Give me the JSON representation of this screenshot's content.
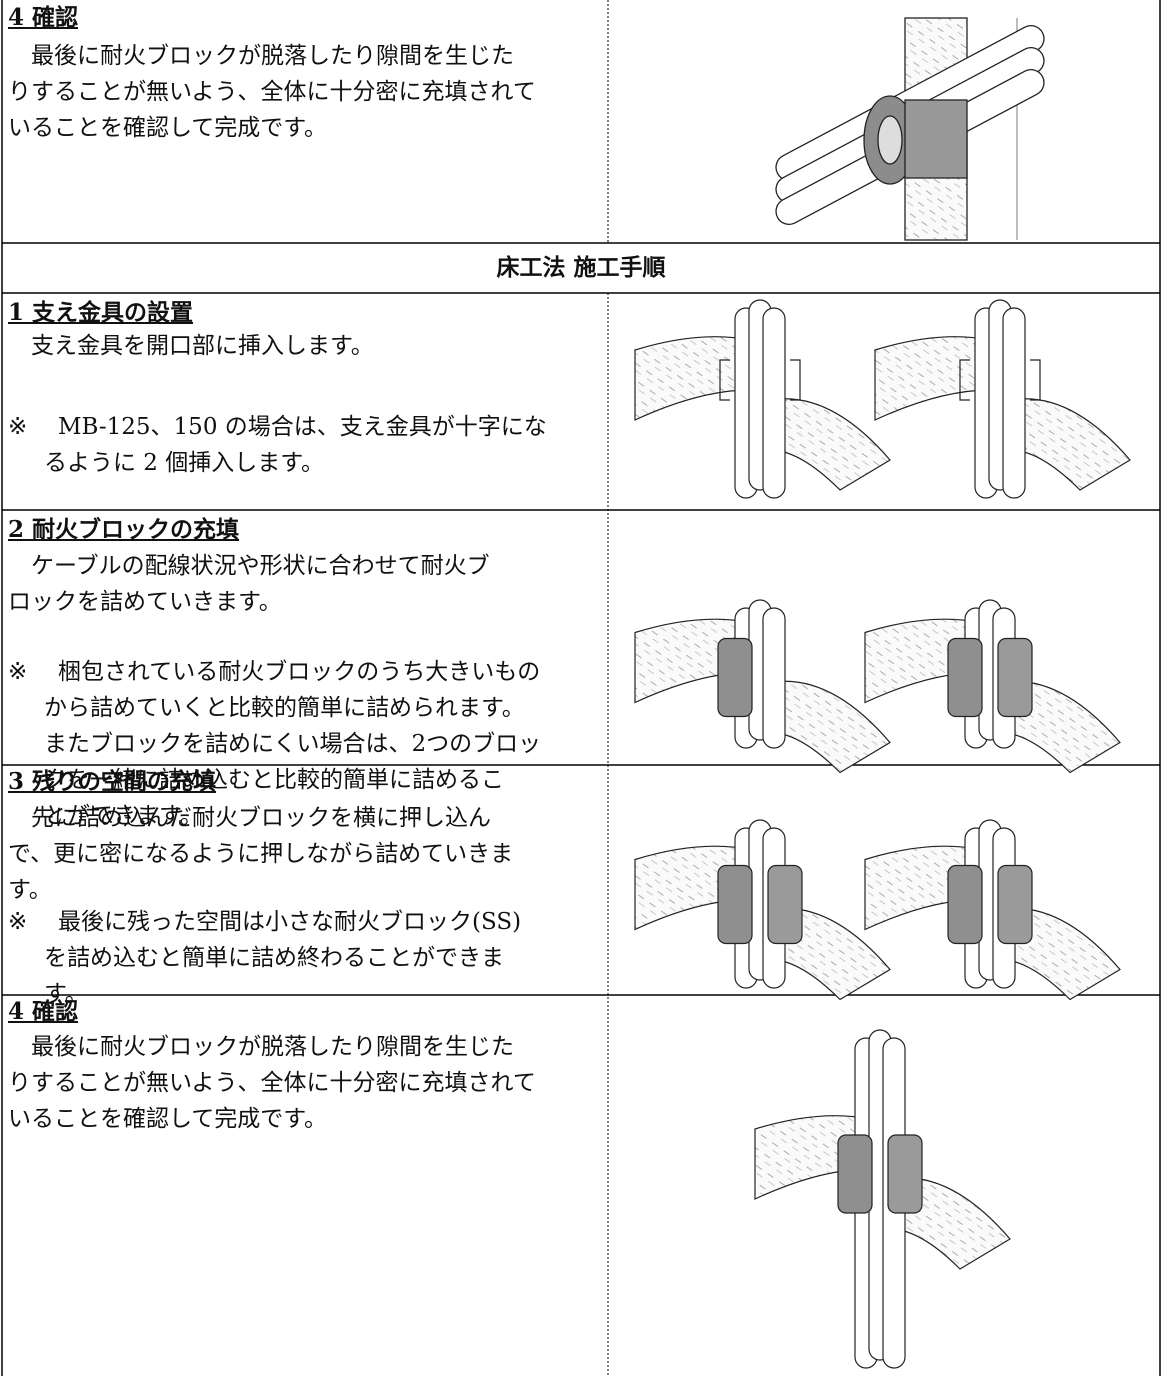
{
  "wall_step": {
    "heading": "4 確認",
    "lines": [
      "最後に耐火ブロックが脱落したり隙間を生じた",
      "りすることが無いよう、全体に十分密に充填されて",
      "いることを確認して完成です。"
    ]
  },
  "floor_method": {
    "title": "床工法 施工手順",
    "steps": [
      {
        "heading": "1 支え金具の設置",
        "lines": [
          "支え金具を開口部に挿入します。"
        ],
        "note_mark": "※",
        "note_lines": [
          "MB-125、150 の場合は、支え金具が十字にな",
          "るように 2 個挿入します。"
        ]
      },
      {
        "heading": "2 耐火ブロックの充填",
        "lines": [
          "ケーブルの配線状況や形状に合わせて耐火ブ",
          "ロックを詰めていきます。"
        ],
        "note_mark": "※",
        "note_lines": [
          "梱包されている耐火ブロックのうち大きいもの",
          "から詰めていくと比較的簡単に詰められます。",
          "またブロックを詰めにくい場合は、2つのブロッ",
          "クを一緒に詰め込むと比較的簡単に詰めるこ",
          "とができます。"
        ]
      },
      {
        "heading": "3 残りの空間の充填",
        "lines": [
          "先に詰め込んだ耐火ブロックを横に押し込ん",
          "で、更に密になるように押しながら詰めていきま",
          "す。"
        ],
        "note_mark": "※",
        "note_lines": [
          "最後に残った空間は小さな耐火ブロック(SS)",
          "を詰め込むと簡単に詰め終わることができま",
          "す。"
        ]
      },
      {
        "heading": "4 確認",
        "lines": [
          "最後に耐火ブロックが脱落したり隙間を生じた",
          "りすることが無いよう、全体に十分密に充填されて",
          "いることを確認して完成です。"
        ]
      }
    ]
  }
}
